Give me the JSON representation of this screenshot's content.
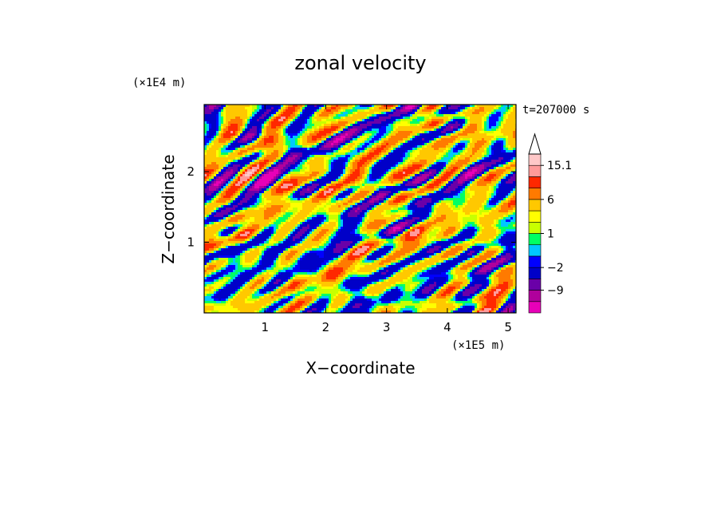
{
  "chart_data": {
    "type": "heatmap",
    "title": "zonal velocity",
    "xlabel": "X−coordinate",
    "ylabel": "Z−coordinate",
    "x_unit": "(×1E5 m)",
    "y_unit": "(×1E4 m)",
    "time_label": "t=207000 s",
    "xlim": [
      0.0,
      5.13
    ],
    "ylim": [
      0.0,
      2.95
    ],
    "x_ticks": [
      1,
      2,
      3,
      4,
      5
    ],
    "y_ticks": [
      1,
      2
    ],
    "colorbar": {
      "levels": [
        -15,
        -12,
        -9,
        -6,
        -2,
        -1,
        0,
        1,
        2,
        3,
        6,
        9,
        12,
        15.1
      ],
      "colors": [
        "#e800b8",
        "#b0009c",
        "#6a00a8",
        "#0000c8",
        "#0000ff",
        "#00c8ff",
        "#00ff64",
        "#c8ff00",
        "#ffff00",
        "#ffc800",
        "#ff7a00",
        "#ff2800",
        "#ff9a9a",
        "#ffc8c8"
      ],
      "extend_max": true,
      "tick_labels": [
        "15.1",
        "6",
        "1",
        "−2",
        "−9"
      ]
    }
  }
}
